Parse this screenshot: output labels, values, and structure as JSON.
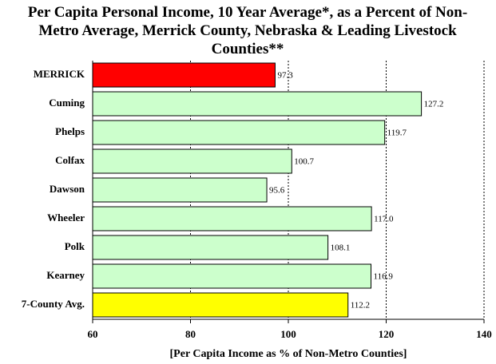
{
  "chart_data": {
    "type": "bar",
    "orientation": "horizontal",
    "title": "Per Capita Personal Income, 10 Year Average*, as a Percent of Non-Metro Average, Merrick County, Nebraska & Leading Livestock Counties**",
    "x_label": "[Per Capita Income as % of Non-Metro Counties]",
    "categories": [
      "MERRICK",
      "Cuming",
      "Phelps",
      "Colfax",
      "Dawson",
      "Wheeler",
      "Polk",
      "Kearney",
      "7-County Avg."
    ],
    "values": [
      97.3,
      127.2,
      119.7,
      100.7,
      95.6,
      117.0,
      108.1,
      116.9,
      112.2
    ],
    "value_labels": [
      "97.3",
      "127.2",
      "119.7",
      "100.7",
      "95.6",
      "117.0",
      "108.1",
      "116.9",
      "112.2"
    ],
    "colors": [
      "#ff0000",
      "#ccffcc",
      "#ccffcc",
      "#ccffcc",
      "#ccffcc",
      "#ccffcc",
      "#ccffcc",
      "#ccffcc",
      "#ffff00"
    ],
    "xlim": [
      60,
      140
    ],
    "xticks": [
      60,
      80,
      100,
      120,
      140
    ],
    "grid": true
  }
}
